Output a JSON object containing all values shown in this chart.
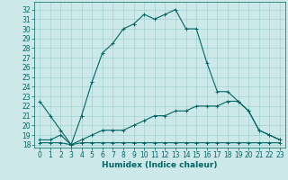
{
  "xlabel": "Humidex (Indice chaleur)",
  "bg_color": "#cce8e8",
  "line_color": "#006666",
  "grid_color": "#99cccc",
  "x_ticks": [
    0,
    1,
    2,
    3,
    4,
    5,
    6,
    7,
    8,
    9,
    10,
    11,
    12,
    13,
    14,
    15,
    16,
    17,
    18,
    19,
    20,
    21,
    22,
    23
  ],
  "y_ticks": [
    18,
    19,
    20,
    21,
    22,
    23,
    24,
    25,
    26,
    27,
    28,
    29,
    30,
    31,
    32
  ],
  "ylim": [
    17.7,
    32.8
  ],
  "xlim": [
    -0.5,
    23.5
  ],
  "line1_x": [
    0,
    1,
    2,
    3,
    4,
    5,
    6,
    7,
    8,
    9,
    10,
    11,
    12,
    13,
    14,
    15,
    16,
    17,
    18,
    19,
    20,
    21,
    22,
    23
  ],
  "line1_y": [
    22.5,
    21.0,
    19.5,
    18.0,
    21.0,
    24.5,
    27.5,
    28.5,
    30.0,
    30.5,
    31.5,
    31.0,
    31.5,
    32.0,
    30.0,
    30.0,
    26.5,
    23.5,
    23.5,
    22.5,
    21.5,
    19.5,
    19.0,
    18.5
  ],
  "line2_x": [
    0,
    1,
    2,
    3,
    4,
    5,
    6,
    7,
    8,
    9,
    10,
    11,
    12,
    13,
    14,
    15,
    16,
    17,
    18,
    19,
    20,
    21,
    22,
    23
  ],
  "line2_y": [
    18.5,
    18.5,
    19.0,
    18.0,
    18.5,
    19.0,
    19.5,
    19.5,
    19.5,
    20.0,
    20.5,
    21.0,
    21.0,
    21.5,
    21.5,
    22.0,
    22.0,
    22.0,
    22.5,
    22.5,
    21.5,
    19.5,
    19.0,
    18.5
  ],
  "line3_x": [
    0,
    1,
    2,
    3,
    4,
    5,
    6,
    7,
    8,
    9,
    10,
    11,
    12,
    13,
    14,
    15,
    16,
    17,
    18,
    19,
    20,
    21,
    22,
    23
  ],
  "line3_y": [
    18.2,
    18.2,
    18.2,
    18.0,
    18.2,
    18.2,
    18.2,
    18.2,
    18.2,
    18.2,
    18.2,
    18.2,
    18.2,
    18.2,
    18.2,
    18.2,
    18.2,
    18.2,
    18.2,
    18.2,
    18.2,
    18.2,
    18.2,
    18.2
  ],
  "marker_size": 2.5,
  "linewidth": 0.8,
  "font_size_ticks": 5.5,
  "font_size_label": 6.5
}
